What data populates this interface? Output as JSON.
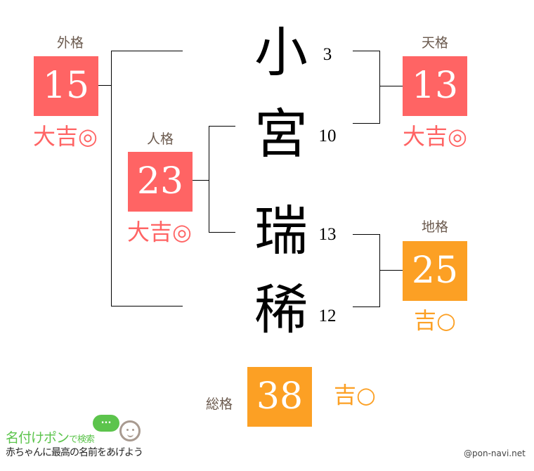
{
  "name": {
    "chars": [
      {
        "char": "小",
        "strokes": "3"
      },
      {
        "char": "宮",
        "strokes": "10"
      },
      {
        "char": "瑞",
        "strokes": "13"
      },
      {
        "char": "稀",
        "strokes": "12"
      }
    ]
  },
  "fortunes": {
    "gaikaku": {
      "label": "外格",
      "value": "15",
      "result": "大吉◎",
      "color": "#ff6464"
    },
    "jinkaku": {
      "label": "人格",
      "value": "23",
      "result": "大吉◎",
      "color": "#ff6464"
    },
    "tenkaku": {
      "label": "天格",
      "value": "13",
      "result": "大吉◎",
      "color": "#ff6464"
    },
    "chikaku": {
      "label": "地格",
      "value": "25",
      "result": "吉○",
      "color": "#fca024"
    },
    "soukaku": {
      "label": "総格",
      "value": "38",
      "result": "吉○",
      "color": "#fca024"
    }
  },
  "footer": {
    "brand": "名付けポン",
    "brand_suffix": "で検索",
    "speech_bubble": "...",
    "tagline": "赤ちゃんに最高の名前をあげよう",
    "credit": "@pon-navi.net",
    "brand_color": "#5cc44c"
  }
}
